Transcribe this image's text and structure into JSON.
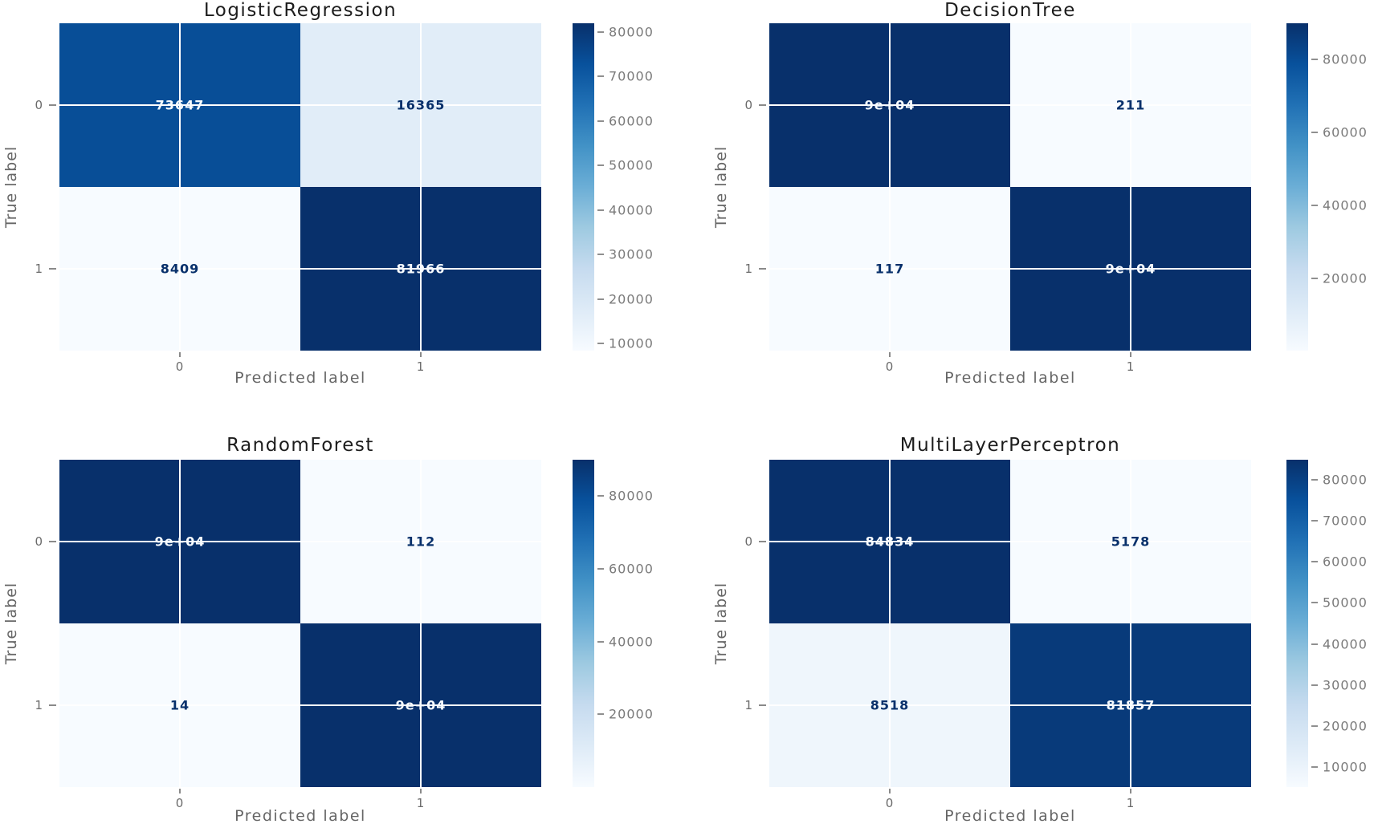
{
  "figure": {
    "background": "#ffffff",
    "colormap": "Blues",
    "colormap_stops": [
      "#f7fbff",
      "#deebf7",
      "#c6dbef",
      "#9ecae1",
      "#6baed6",
      "#4292c6",
      "#2171b5",
      "#08519c",
      "#08306b"
    ],
    "cell_text_dark": "#08306b",
    "cell_text_light": "#f7fbff",
    "tick_color": "#6b6b6b",
    "axis_label_color": "#666666",
    "title_color": "#1c1c1c"
  },
  "chart_data": [
    {
      "type": "heatmap",
      "title": "LogisticRegression",
      "xlabel": "Predicted label",
      "ylabel": "True label",
      "x_tick_labels": [
        "0",
        "1"
      ],
      "y_tick_labels": [
        "0",
        "1"
      ],
      "matrix": [
        [
          73647,
          16365
        ],
        [
          8409,
          81966
        ]
      ],
      "cell_labels": [
        [
          "73647",
          "16365"
        ],
        [
          "8409",
          "81966"
        ]
      ],
      "vmin": 8409,
      "vmax": 81966,
      "colorbar_ticks": [
        10000,
        20000,
        30000,
        40000,
        50000,
        60000,
        70000,
        80000
      ],
      "colorbar_tick_labels": [
        "10000",
        "20000",
        "30000",
        "40000",
        "50000",
        "60000",
        "70000",
        "80000"
      ]
    },
    {
      "type": "heatmap",
      "title": "DecisionTree",
      "xlabel": "Predicted label",
      "ylabel": "True label",
      "x_tick_labels": [
        "0",
        "1"
      ],
      "y_tick_labels": [
        "0",
        "1"
      ],
      "matrix": [
        [
          90000,
          211
        ],
        [
          117,
          90000
        ]
      ],
      "cell_labels": [
        [
          "9e+04",
          "211"
        ],
        [
          "117",
          "9e+04"
        ]
      ],
      "vmin": 117,
      "vmax": 90000,
      "colorbar_ticks": [
        20000,
        40000,
        60000,
        80000
      ],
      "colorbar_tick_labels": [
        "20000",
        "40000",
        "60000",
        "80000"
      ]
    },
    {
      "type": "heatmap",
      "title": "RandomForest",
      "xlabel": "Predicted label",
      "ylabel": "True label",
      "x_tick_labels": [
        "0",
        "1"
      ],
      "y_tick_labels": [
        "0",
        "1"
      ],
      "matrix": [
        [
          90000,
          112
        ],
        [
          14,
          90000
        ]
      ],
      "cell_labels": [
        [
          "9e+04",
          "112"
        ],
        [
          "14",
          "9e+04"
        ]
      ],
      "vmin": 14,
      "vmax": 90000,
      "colorbar_ticks": [
        20000,
        40000,
        60000,
        80000
      ],
      "colorbar_tick_labels": [
        "20000",
        "40000",
        "60000",
        "80000"
      ]
    },
    {
      "type": "heatmap",
      "title": "MultiLayerPerceptron",
      "xlabel": "Predicted label",
      "ylabel": "True label",
      "x_tick_labels": [
        "0",
        "1"
      ],
      "y_tick_labels": [
        "0",
        "1"
      ],
      "matrix": [
        [
          84834,
          5178
        ],
        [
          8518,
          81857
        ]
      ],
      "cell_labels": [
        [
          "84834",
          "5178"
        ],
        [
          "8518",
          "81857"
        ]
      ],
      "vmin": 5178,
      "vmax": 84834,
      "colorbar_ticks": [
        10000,
        20000,
        30000,
        40000,
        50000,
        60000,
        70000,
        80000
      ],
      "colorbar_tick_labels": [
        "10000",
        "20000",
        "30000",
        "40000",
        "50000",
        "60000",
        "70000",
        "80000"
      ]
    }
  ]
}
